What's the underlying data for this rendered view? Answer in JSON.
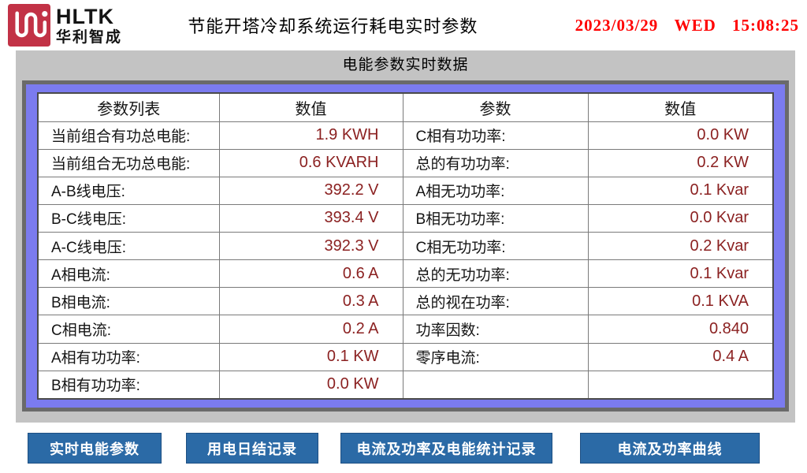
{
  "header": {
    "brand": {
      "acronym": "HLTK",
      "name": "华利智成",
      "logo_color": "#C23246"
    },
    "title": "节能开塔冷却系统运行耗电实时参数",
    "datetime": {
      "date": "2023/03/29",
      "weekday": "WED",
      "time": "15:08:25",
      "color": "#FF0000"
    }
  },
  "panel": {
    "title": "电能参数实时数据",
    "background": "#C3C3C3",
    "table": {
      "border_color": "#7B7BEF",
      "value_color": "#8B2121",
      "headers": [
        "参数列表",
        "数值",
        "参数",
        "数值"
      ],
      "left_rows": [
        {
          "label": "当前组合有功总电能:",
          "value": "1.9 KWH"
        },
        {
          "label": "当前组合无功总电能:",
          "value": "0.6 KVARH"
        },
        {
          "label": "A-B线电压:",
          "value": "392.2 V"
        },
        {
          "label": "B-C线电压:",
          "value": "393.4 V"
        },
        {
          "label": "A-C线电压:",
          "value": "392.3 V"
        },
        {
          "label": "A相电流:",
          "value": "0.6 A"
        },
        {
          "label": "B相电流:",
          "value": "0.3 A"
        },
        {
          "label": "C相电流:",
          "value": "0.2 A"
        },
        {
          "label": "A相有功功率:",
          "value": "0.1 KW"
        },
        {
          "label": "B相有功功率:",
          "value": "0.0 KW"
        }
      ],
      "right_rows": [
        {
          "label": "C相有功功率:",
          "value": "0.0 KW"
        },
        {
          "label": "总的有功功率:",
          "value": "0.2 KW"
        },
        {
          "label": "A相无功功率:",
          "value": "0.1 Kvar"
        },
        {
          "label": "B相无功功率:",
          "value": "0.0 Kvar"
        },
        {
          "label": "C相无功功率:",
          "value": "0.2 Kvar"
        },
        {
          "label": "总的无功功率:",
          "value": "0.1 Kvar"
        },
        {
          "label": "总的视在功率:",
          "value": "0.1 KVA"
        },
        {
          "label": "功率因数:",
          "value": "0.840"
        },
        {
          "label": "零序电流:",
          "value": "0.4 A"
        },
        {
          "label": "",
          "value": ""
        }
      ]
    }
  },
  "footer": {
    "button_color": "#2B6AA6",
    "buttons": [
      {
        "label": "实时电能参数"
      },
      {
        "label": "用电日结记录"
      },
      {
        "label": "电流及功率及电能统计记录"
      },
      {
        "label": "电流及功率曲线"
      }
    ]
  }
}
